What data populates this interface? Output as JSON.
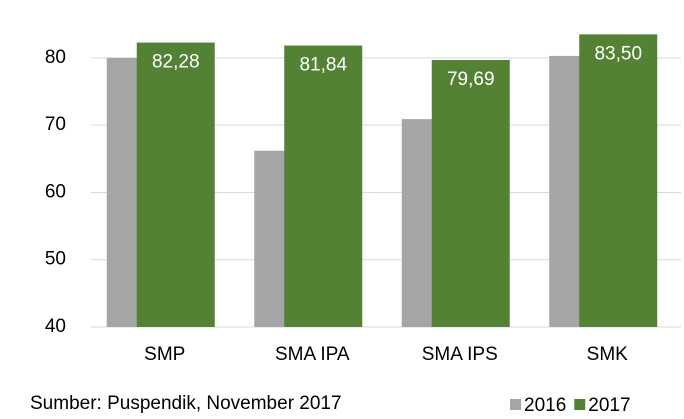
{
  "chart_data": {
    "type": "bar",
    "categories": [
      "SMP",
      "SMA IPA",
      "SMA IPS",
      "SMK"
    ],
    "series": [
      {
        "name": "2016",
        "color": "#a5a5a5",
        "values": [
          80.0,
          66.2,
          70.9,
          80.3
        ]
      },
      {
        "name": "2017",
        "color": "#548235",
        "values": [
          82.28,
          81.84,
          79.69,
          83.5
        ],
        "value_labels": [
          "82,28",
          "81,84",
          "79,69",
          "83,50"
        ]
      }
    ],
    "ylim": [
      40,
      84
    ],
    "yticks": [
      40,
      50,
      60,
      70,
      80
    ],
    "grid": true,
    "legend": "bottom-right",
    "source": "Sumber: Puspendik, November 2017"
  }
}
